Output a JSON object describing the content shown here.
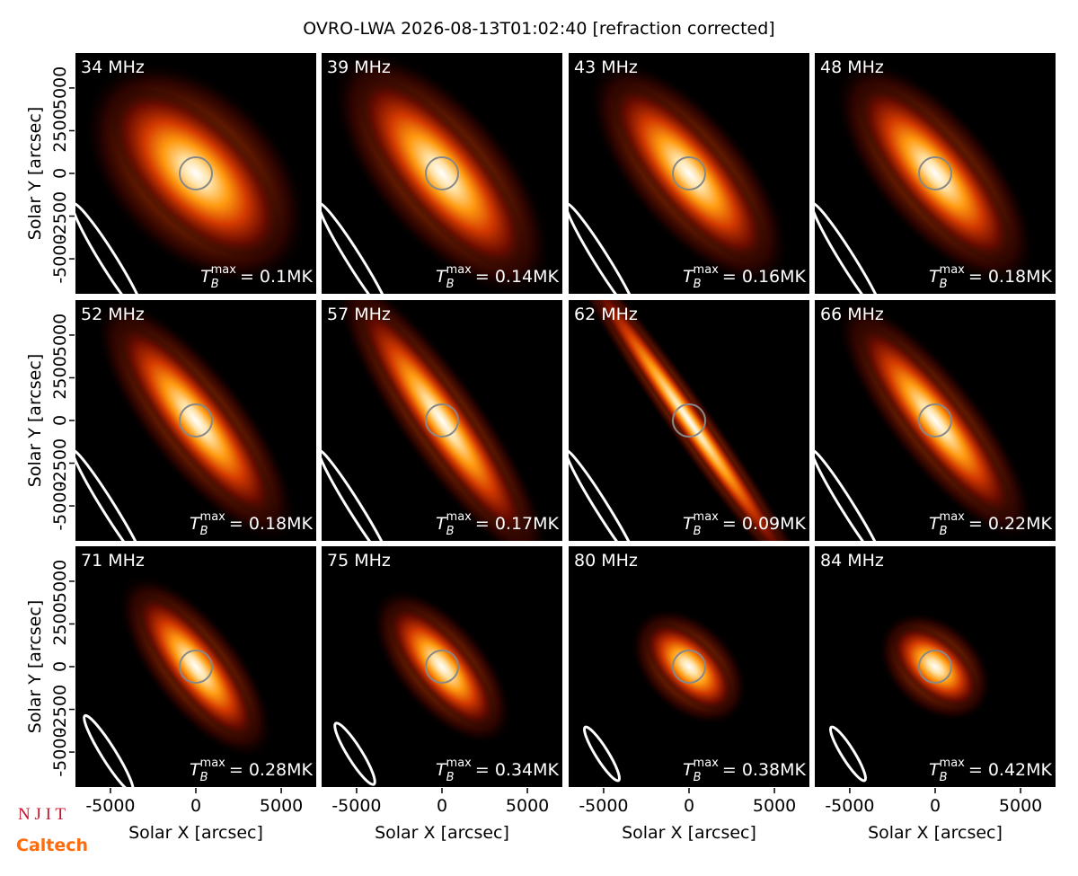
{
  "chart_data": {
    "type": "image_grid",
    "title": "OVRO-LWA 2026-08-13T01:02:40 [refraction corrected]",
    "xlabel": "Solar X [arcsec]",
    "ylabel": "Solar Y [arcsec]",
    "xlim": [
      -7100,
      7100
    ],
    "ylim": [
      -7100,
      7100
    ],
    "xticks": [
      -5000,
      0,
      5000
    ],
    "yticks": [
      -5000,
      -2500,
      0,
      2500,
      5000
    ],
    "tmax_symbol": {
      "base": "T",
      "sub": "B",
      "sup": "max"
    },
    "panels": [
      {
        "label": "34 MHz",
        "tmax": 0.1,
        "tmax_label": "= 0.1MK"
      },
      {
        "label": "39 MHz",
        "tmax": 0.14,
        "tmax_label": "= 0.14MK"
      },
      {
        "label": "43 MHz",
        "tmax": 0.16,
        "tmax_label": "= 0.16MK"
      },
      {
        "label": "48 MHz",
        "tmax": 0.18,
        "tmax_label": "= 0.18MK"
      },
      {
        "label": "52 MHz",
        "tmax": 0.18,
        "tmax_label": "= 0.18MK"
      },
      {
        "label": "57 MHz",
        "tmax": 0.17,
        "tmax_label": "= 0.17MK"
      },
      {
        "label": "62 MHz",
        "tmax": 0.09,
        "tmax_label": "= 0.09MK"
      },
      {
        "label": "66 MHz",
        "tmax": 0.22,
        "tmax_label": "= 0.22MK"
      },
      {
        "label": "71 MHz",
        "tmax": 0.28,
        "tmax_label": "= 0.28MK"
      },
      {
        "label": "75 MHz",
        "tmax": 0.34,
        "tmax_label": "= 0.34MK"
      },
      {
        "label": "80 MHz",
        "tmax": 0.38,
        "tmax_label": "= 0.38MK"
      },
      {
        "label": "84 MHz",
        "tmax": 0.42,
        "tmax_label": "= 0.42MK"
      }
    ],
    "logos": [
      "N J I T",
      "Caltech"
    ]
  }
}
